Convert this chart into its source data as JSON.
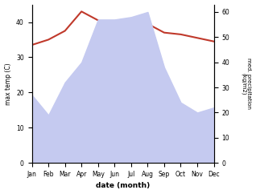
{
  "months": [
    "Jan",
    "Feb",
    "Mar",
    "Apr",
    "May",
    "Jun",
    "Jul",
    "Aug",
    "Sep",
    "Oct",
    "Nov",
    "Dec"
  ],
  "max_temp": [
    33.5,
    35.0,
    37.5,
    43.0,
    40.5,
    37.5,
    38.0,
    39.5,
    37.0,
    36.5,
    35.5,
    34.5
  ],
  "precipitation": [
    27,
    19,
    32,
    40,
    57,
    57,
    58,
    60,
    38,
    24,
    20,
    22
  ],
  "temp_color": "#c0392b",
  "precip_fill_color": "#c5caf0",
  "left_ylabel": "max temp (C)",
  "right_ylabel": "med. precipitation\n(kg/m2)",
  "xlabel": "date (month)",
  "ylim_left": [
    0,
    45
  ],
  "ylim_right": [
    0,
    63
  ],
  "yticks_left": [
    0,
    10,
    20,
    30,
    40
  ],
  "yticks_right": [
    0,
    10,
    20,
    30,
    40,
    50,
    60
  ],
  "bg_color": "#ffffff"
}
